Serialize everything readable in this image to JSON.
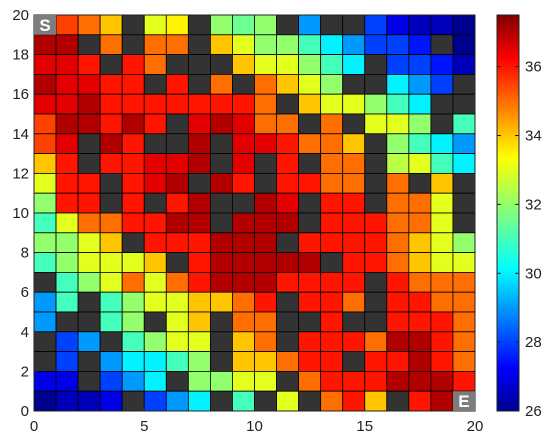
{
  "chart_data": {
    "type": "heatmap",
    "title": "",
    "xlabel": "",
    "ylabel": "",
    "xlim": [
      0,
      20
    ],
    "ylim": [
      0,
      20
    ],
    "xticks": [
      0,
      5,
      10,
      15,
      20
    ],
    "yticks": [
      0,
      2,
      4,
      6,
      8,
      10,
      12,
      14,
      16,
      18,
      20
    ],
    "colorbar": {
      "range": [
        26,
        37.5
      ],
      "ticks": [
        26,
        28,
        30,
        32,
        34,
        36
      ],
      "colormap": "jet"
    },
    "obstacle_color": "#333333",
    "start": {
      "label": "S",
      "cell": [
        0,
        19
      ]
    },
    "end": {
      "label": "E",
      "cell": [
        19,
        0
      ]
    },
    "rows_top_to_bottom": [
      [
        36.5,
        35.5,
        35,
        34,
        null,
        33,
        33.5,
        null,
        32,
        31.5,
        32,
        null,
        29,
        null,
        null,
        28,
        27,
        26.5,
        26.5,
        26
      ],
      [
        37,
        37,
        null,
        35,
        null,
        35,
        35,
        null,
        34,
        33,
        32,
        32,
        31,
        30,
        29,
        28,
        28,
        27.5,
        null,
        26
      ],
      [
        36.5,
        36.5,
        36,
        null,
        36,
        35,
        null,
        null,
        null,
        34,
        33,
        33,
        32,
        31,
        30,
        null,
        28,
        28,
        27.5,
        26.5
      ],
      [
        37,
        36.5,
        36.5,
        36,
        36,
        null,
        36,
        null,
        35,
        null,
        35,
        34,
        33,
        32,
        null,
        null,
        30,
        29,
        28,
        null
      ],
      [
        36.5,
        36.5,
        37,
        36,
        36,
        36,
        36,
        36,
        36,
        36,
        35,
        null,
        34,
        33,
        33,
        32,
        31,
        30,
        null,
        null
      ],
      [
        35.5,
        37,
        37,
        36,
        37,
        36,
        null,
        36.5,
        37,
        36.5,
        35,
        35,
        null,
        35,
        null,
        33,
        33,
        32,
        null,
        31
      ],
      [
        35.5,
        36.5,
        null,
        37,
        36,
        null,
        null,
        37,
        null,
        36.5,
        36.5,
        36,
        35,
        35,
        34,
        null,
        32,
        31,
        30,
        29
      ],
      [
        34,
        36,
        null,
        36,
        36,
        36.5,
        36.5,
        37,
        null,
        36.5,
        null,
        36,
        null,
        35,
        35,
        null,
        32.5,
        33,
        31,
        30
      ],
      [
        33,
        36,
        36,
        null,
        36,
        36.5,
        37,
        null,
        37,
        36,
        null,
        36,
        36,
        35,
        35,
        null,
        35,
        null,
        34,
        null
      ],
      [
        32,
        36,
        36,
        null,
        36,
        null,
        36,
        37,
        null,
        null,
        37,
        36.5,
        null,
        36,
        36,
        null,
        35,
        35,
        33,
        null
      ],
      [
        31,
        33,
        35,
        35,
        36,
        36,
        37,
        37,
        null,
        37,
        37,
        37,
        null,
        36,
        36,
        36,
        35,
        35,
        33,
        null
      ],
      [
        32,
        32,
        33,
        34,
        null,
        36,
        36,
        36,
        37,
        37,
        37,
        null,
        36,
        36,
        36,
        36,
        35,
        34,
        33,
        32
      ],
      [
        31,
        32,
        33,
        33,
        33,
        34,
        null,
        36,
        37,
        37,
        37,
        37,
        37,
        null,
        36,
        36,
        35,
        34,
        33,
        33
      ],
      [
        null,
        31,
        32,
        33,
        35,
        33,
        35,
        36,
        37,
        37,
        37,
        36,
        36,
        36,
        36,
        null,
        36,
        35,
        35,
        35
      ],
      [
        29,
        31,
        null,
        31,
        32,
        33,
        33,
        34,
        34,
        35,
        36,
        null,
        36,
        36,
        35,
        null,
        36,
        36,
        35,
        35
      ],
      [
        29,
        null,
        null,
        31,
        32,
        null,
        33,
        34,
        null,
        35,
        35,
        null,
        null,
        36,
        null,
        null,
        36,
        36,
        36,
        35
      ],
      [
        null,
        28,
        29,
        null,
        31,
        32,
        33,
        33,
        null,
        34,
        35,
        null,
        36,
        36,
        36,
        35,
        37,
        37,
        36,
        35
      ],
      [
        null,
        28,
        null,
        29,
        30,
        30,
        31,
        32,
        null,
        34,
        34,
        35,
        36,
        36,
        null,
        36,
        36,
        37,
        36,
        35
      ],
      [
        27,
        27,
        null,
        28,
        29,
        30,
        null,
        32,
        32,
        33,
        33,
        null,
        35,
        36,
        36,
        36,
        37,
        37,
        37,
        36
      ],
      [
        26,
        26.5,
        26.5,
        27,
        null,
        28,
        29,
        30,
        null,
        31,
        null,
        33,
        null,
        35,
        36,
        34,
        null,
        36,
        37,
        37
      ]
    ]
  }
}
